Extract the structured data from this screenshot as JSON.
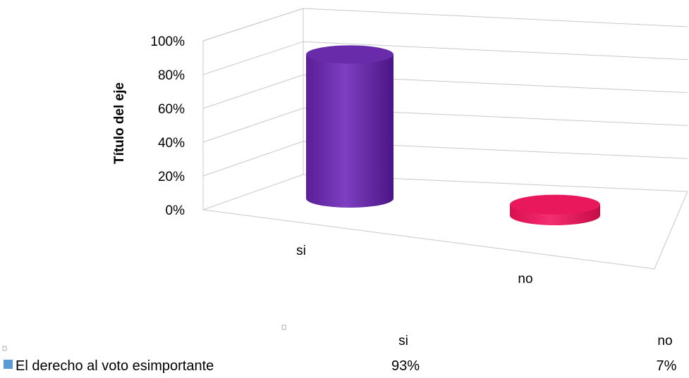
{
  "chart_data": {
    "type": "bar",
    "style": "3d-cylinder",
    "categories": [
      "si",
      "no"
    ],
    "series": [
      {
        "name": "El derecho al voto esimportante",
        "values": [
          0.93,
          0.07
        ]
      }
    ],
    "value_labels": [
      "93%",
      "7%"
    ],
    "ylabel": "Título del eje",
    "xlabel": "",
    "ylim": [
      0,
      1
    ],
    "yticks": [
      {
        "value": 0,
        "label": "0%"
      },
      {
        "value": 0.2,
        "label": "20%"
      },
      {
        "value": 0.4,
        "label": "40%"
      },
      {
        "value": 0.6,
        "label": "60%"
      },
      {
        "value": 0.8,
        "label": "80%"
      },
      {
        "value": 1,
        "label": "100%"
      }
    ],
    "grid": true,
    "legend": "data-table-below",
    "colors": {
      "si": "#7030a0",
      "no": "#e8175d",
      "legend_key": "#5b9bd5"
    }
  }
}
